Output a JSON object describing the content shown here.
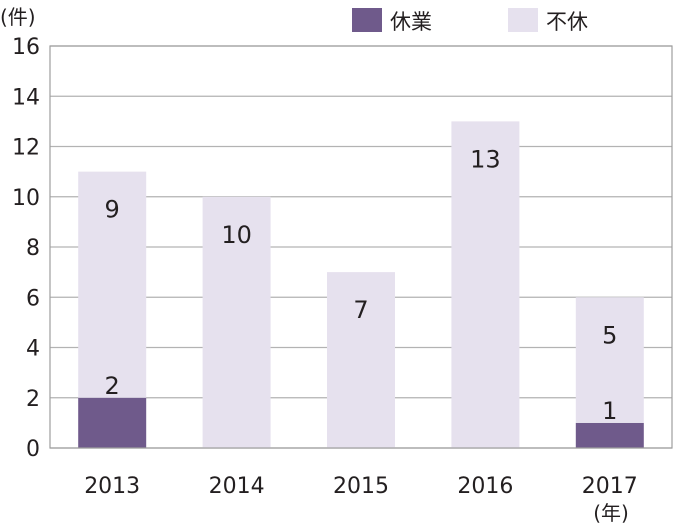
{
  "chart_data": {
    "type": "bar",
    "stacked": true,
    "categories": [
      "2013",
      "2014",
      "2015",
      "2016",
      "2017"
    ],
    "series": [
      {
        "name": "休業",
        "values": [
          2,
          0,
          0,
          0,
          1
        ],
        "color": "#6f5a8b"
      },
      {
        "name": "不休",
        "values": [
          9,
          10,
          7,
          13,
          5
        ],
        "color": "#e6e1ee"
      }
    ],
    "ylabel": "(件)",
    "xlabel": "(年)",
    "ylim": [
      0,
      16
    ],
    "yticks": [
      0,
      2,
      4,
      6,
      8,
      10,
      12,
      14,
      16
    ],
    "grid": true,
    "legend_position": "top"
  },
  "colors": {
    "gridline": "#b3b3b3",
    "frame": "#9e9e9e"
  }
}
